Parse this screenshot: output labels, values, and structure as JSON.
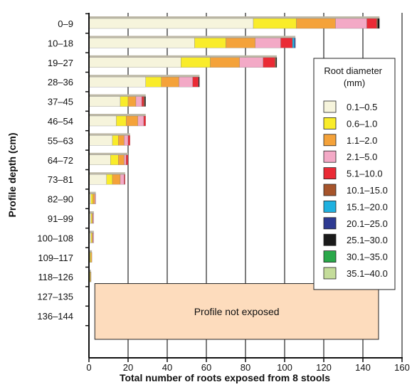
{
  "chart_data": {
    "type": "bar",
    "orientation": "horizontal",
    "stacked": true,
    "xlabel": "Total number of roots exposed from 8 stools",
    "ylabel": "Profile depth (cm)",
    "xlim": [
      0,
      160
    ],
    "xticks": [
      0,
      20,
      40,
      60,
      80,
      100,
      120,
      140,
      160
    ],
    "grid": "vertical",
    "categories": [
      "0–9",
      "10–18",
      "19–27",
      "28–36",
      "37–45",
      "46–54",
      "55–63",
      "64–72",
      "73–81",
      "82–90",
      "91–99",
      "100–108",
      "109–117",
      "118–126",
      "127–135",
      "136–144"
    ],
    "legend": {
      "title": "Root diameter (mm)",
      "placement": "right"
    },
    "series": [
      {
        "name": "0.1–0.5",
        "color": "#f6f4dc",
        "values": [
          84,
          54,
          47,
          29,
          16,
          14,
          12,
          11,
          9,
          1,
          1,
          1,
          0.5,
          0.5,
          0,
          0
        ]
      },
      {
        "name": "0.6–1.0",
        "color": "#f9ec2a",
        "values": [
          22,
          16,
          15,
          8,
          4,
          5,
          3,
          4,
          3,
          1,
          0.5,
          0.5,
          0.5,
          0.3,
          0,
          0
        ]
      },
      {
        "name": "1.1–2.0",
        "color": "#f4a23a",
        "values": [
          20,
          15,
          15,
          9,
          4,
          6,
          3,
          3,
          4,
          1,
          0.5,
          0.5,
          0.5,
          0.2,
          0,
          0
        ]
      },
      {
        "name": "2.1–5.0",
        "color": "#f3a9c6",
        "values": [
          16,
          13,
          12,
          7,
          3,
          3,
          2,
          1,
          2,
          0.5,
          0.5,
          0.5,
          0,
          0,
          0,
          0
        ]
      },
      {
        "name": "5.1–10.0",
        "color": "#ea2a35",
        "values": [
          5,
          6,
          6,
          3,
          1,
          1,
          1,
          1,
          0.5,
          0,
          0,
          0,
          0,
          0,
          0,
          0
        ]
      },
      {
        "name": "10.1–15.0",
        "color": "#a6542b",
        "values": [
          0.5,
          0,
          0.5,
          0,
          0.5,
          0,
          0,
          0,
          0,
          0,
          0,
          0,
          0,
          0,
          0,
          0
        ]
      },
      {
        "name": "15.1–20.0",
        "color": "#1fb1e0",
        "values": [
          0,
          1,
          0,
          0,
          0,
          0,
          0,
          0,
          0,
          0,
          0,
          0,
          0,
          0,
          0,
          0
        ]
      },
      {
        "name": "20.1–25.0",
        "color": "#2e3a92",
        "values": [
          0,
          0.5,
          0,
          0,
          0,
          0,
          0,
          0,
          0,
          0,
          0,
          0,
          0,
          0,
          0,
          0
        ]
      },
      {
        "name": "25.1–30.0",
        "color": "#1a1a1a",
        "values": [
          1,
          0,
          0.5,
          0.5,
          0.5,
          0,
          0,
          0,
          0,
          0,
          0,
          0,
          0,
          0,
          0,
          0
        ]
      },
      {
        "name": "30.1–35.0",
        "color": "#2aa84a",
        "values": [
          0,
          0,
          0,
          0,
          0,
          0,
          0,
          0,
          0,
          0,
          0,
          0,
          0,
          0,
          0,
          0
        ]
      },
      {
        "name": "35.1–40.0",
        "color": "#c4dc9a",
        "values": [
          0,
          0,
          0,
          0,
          0,
          0,
          0,
          0,
          0,
          0,
          0,
          0,
          0,
          0,
          0,
          0
        ]
      }
    ],
    "bar_top_color": "#bdb8a6",
    "annotation": {
      "text": "Profile not exposed",
      "x_range": [
        3,
        148
      ],
      "rows": [
        "127–135",
        "136–144"
      ],
      "fill": "#fddcbd"
    }
  }
}
